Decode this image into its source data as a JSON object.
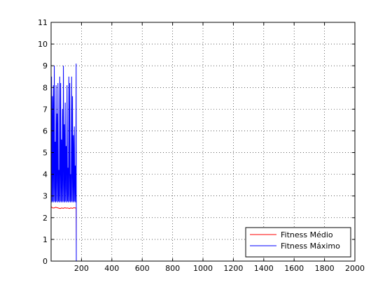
{
  "chart_data": {
    "type": "line",
    "xlim": [
      0,
      2000
    ],
    "ylim": [
      0,
      11
    ],
    "xticks": [
      "200",
      "400",
      "600",
      "800",
      "1000",
      "1200",
      "1400",
      "1600",
      "1800",
      "2000"
    ],
    "xtick_values": [
      200,
      400,
      600,
      800,
      1000,
      1200,
      1400,
      1600,
      1800,
      2000
    ],
    "yticks": [
      "0",
      "1",
      "2",
      "3",
      "4",
      "5",
      "6",
      "7",
      "8",
      "9",
      "10",
      "11"
    ],
    "ytick_values": [
      0,
      1,
      2,
      3,
      4,
      5,
      6,
      7,
      8,
      9,
      10,
      11
    ],
    "grid": true,
    "legend_position": "bottom-right",
    "series": [
      {
        "name": "Fitness Médio",
        "color": "#ff0000",
        "x": [
          1,
          10,
          20,
          30,
          40,
          50,
          60,
          70,
          80,
          90,
          100,
          110,
          120,
          130,
          140,
          150,
          160,
          165,
          166,
          2000
        ],
        "y": [
          2.5,
          2.45,
          2.45,
          2.48,
          2.46,
          2.44,
          2.42,
          2.45,
          2.43,
          2.46,
          2.44,
          2.45,
          2.42,
          2.45,
          2.43,
          2.46,
          2.45,
          2.44,
          0,
          0
        ]
      },
      {
        "name": "Fitness Máximo",
        "color": "#0000ff",
        "x": [
          1,
          3,
          6,
          9,
          12,
          15,
          18,
          21,
          24,
          27,
          30,
          33,
          36,
          39,
          42,
          45,
          48,
          51,
          54,
          57,
          60,
          63,
          66,
          69,
          72,
          75,
          78,
          81,
          84,
          87,
          90,
          93,
          96,
          99,
          102,
          105,
          108,
          111,
          114,
          117,
          120,
          123,
          126,
          129,
          132,
          135,
          138,
          141,
          144,
          147,
          150,
          153,
          156,
          159,
          162,
          165,
          166,
          2000
        ],
        "y": [
          2.75,
          8.5,
          2.7,
          7.6,
          2.75,
          8.1,
          2.7,
          9.0,
          2.75,
          5.5,
          2.7,
          8.1,
          2.75,
          6.8,
          2.7,
          8.2,
          2.75,
          4.2,
          2.7,
          8.5,
          2.75,
          8.2,
          2.7,
          5.6,
          2.75,
          7.0,
          2.7,
          9.0,
          2.75,
          6.3,
          2.7,
          7.3,
          2.75,
          5.3,
          2.7,
          8.1,
          2.75,
          4.3,
          2.7,
          8.5,
          2.75,
          8.2,
          2.7,
          4.0,
          2.75,
          8.5,
          2.7,
          7.6,
          2.75,
          5.8,
          2.7,
          6.2,
          2.75,
          4.4,
          2.7,
          9.1,
          0,
          0
        ]
      }
    ]
  }
}
